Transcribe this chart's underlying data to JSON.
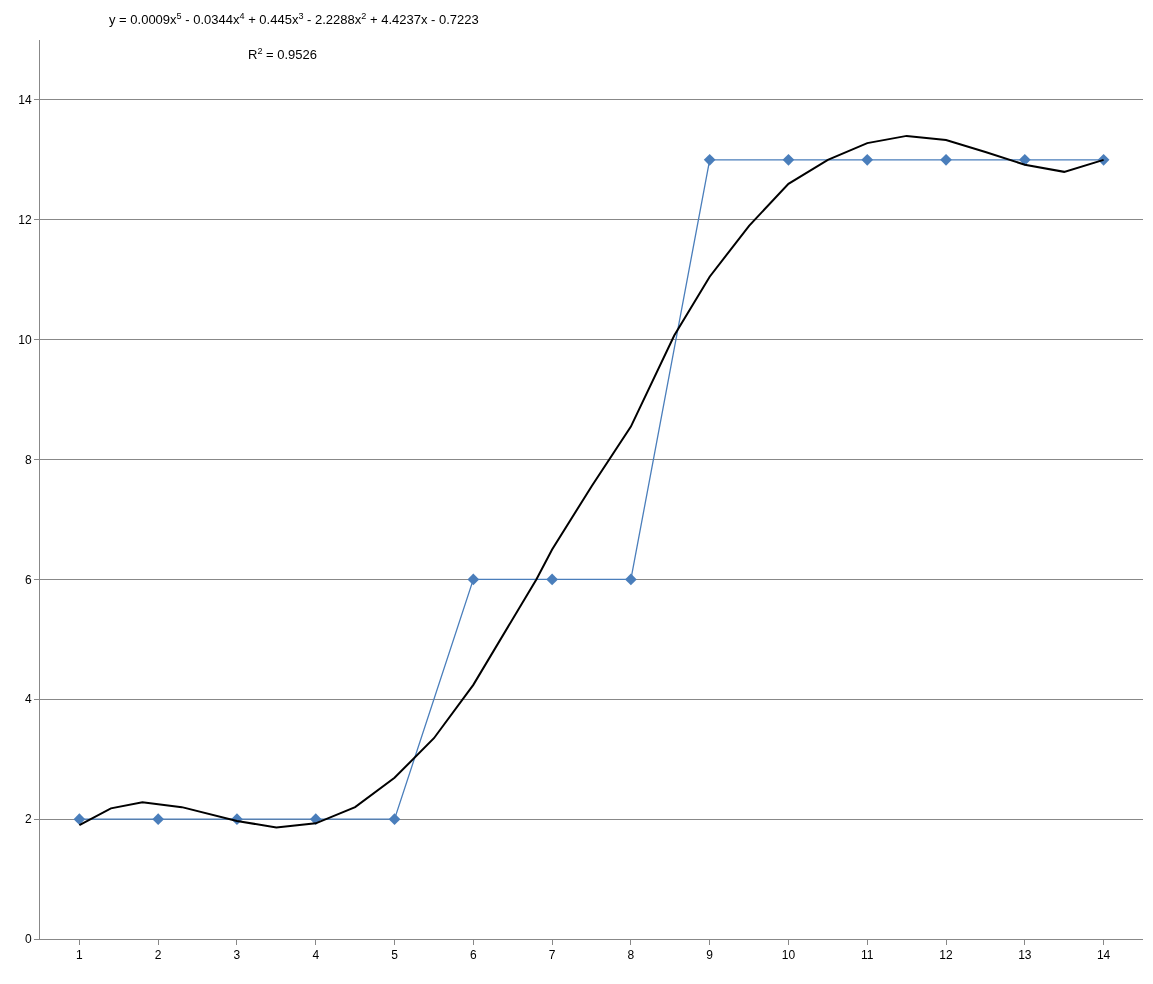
{
  "chart_data": {
    "type": "line",
    "xlim": [
      0.5,
      14.5
    ],
    "xticks": [
      1,
      2,
      3,
      4,
      5,
      6,
      7,
      8,
      9,
      10,
      11,
      12,
      13,
      14
    ],
    "ylim": [
      0,
      15
    ],
    "yticks": [
      0,
      2,
      4,
      6,
      8,
      10,
      12,
      14
    ],
    "grid": "y",
    "annotations": [
      "y = 0.0009x$^{5}$ - 0.0344x$^{4}$ + 0.445x$^{3}$ - 2.2288x$^{2}$ + 4.4237x - 0.7223",
      "R$^{2}$ = 0.9526"
    ],
    "series": [
      {
        "color": "#4a7ebb",
        "marker": "diamond",
        "line_style": "solid",
        "x": [
          1,
          2,
          3,
          4,
          5,
          6,
          7,
          8,
          9,
          10,
          11,
          12,
          13,
          14
        ],
        "values": [
          2,
          2,
          2,
          2,
          2,
          6,
          6,
          6,
          13,
          13,
          13,
          13,
          13,
          13
        ]
      },
      {
        "color": "#000000",
        "marker": "none",
        "line_style": "solid",
        "x": [
          1,
          1.4,
          1.8,
          2.3,
          3,
          3.5,
          4,
          4.5,
          5,
          5.5,
          6,
          6.8,
          7,
          7.5,
          8,
          8.55,
          9,
          9.5,
          10,
          10.5,
          11,
          11.5,
          12,
          12.5,
          13,
          13.5,
          14
        ],
        "values": [
          1.9,
          2.18,
          2.28,
          2.2,
          1.97,
          1.86,
          1.93,
          2.2,
          2.69,
          3.35,
          4.24,
          6.0,
          6.5,
          7.55,
          8.55,
          10.07,
          11.05,
          11.9,
          12.6,
          13.0,
          13.28,
          13.4,
          13.33,
          13.13,
          12.92,
          12.8,
          13.0
        ]
      }
    ]
  }
}
